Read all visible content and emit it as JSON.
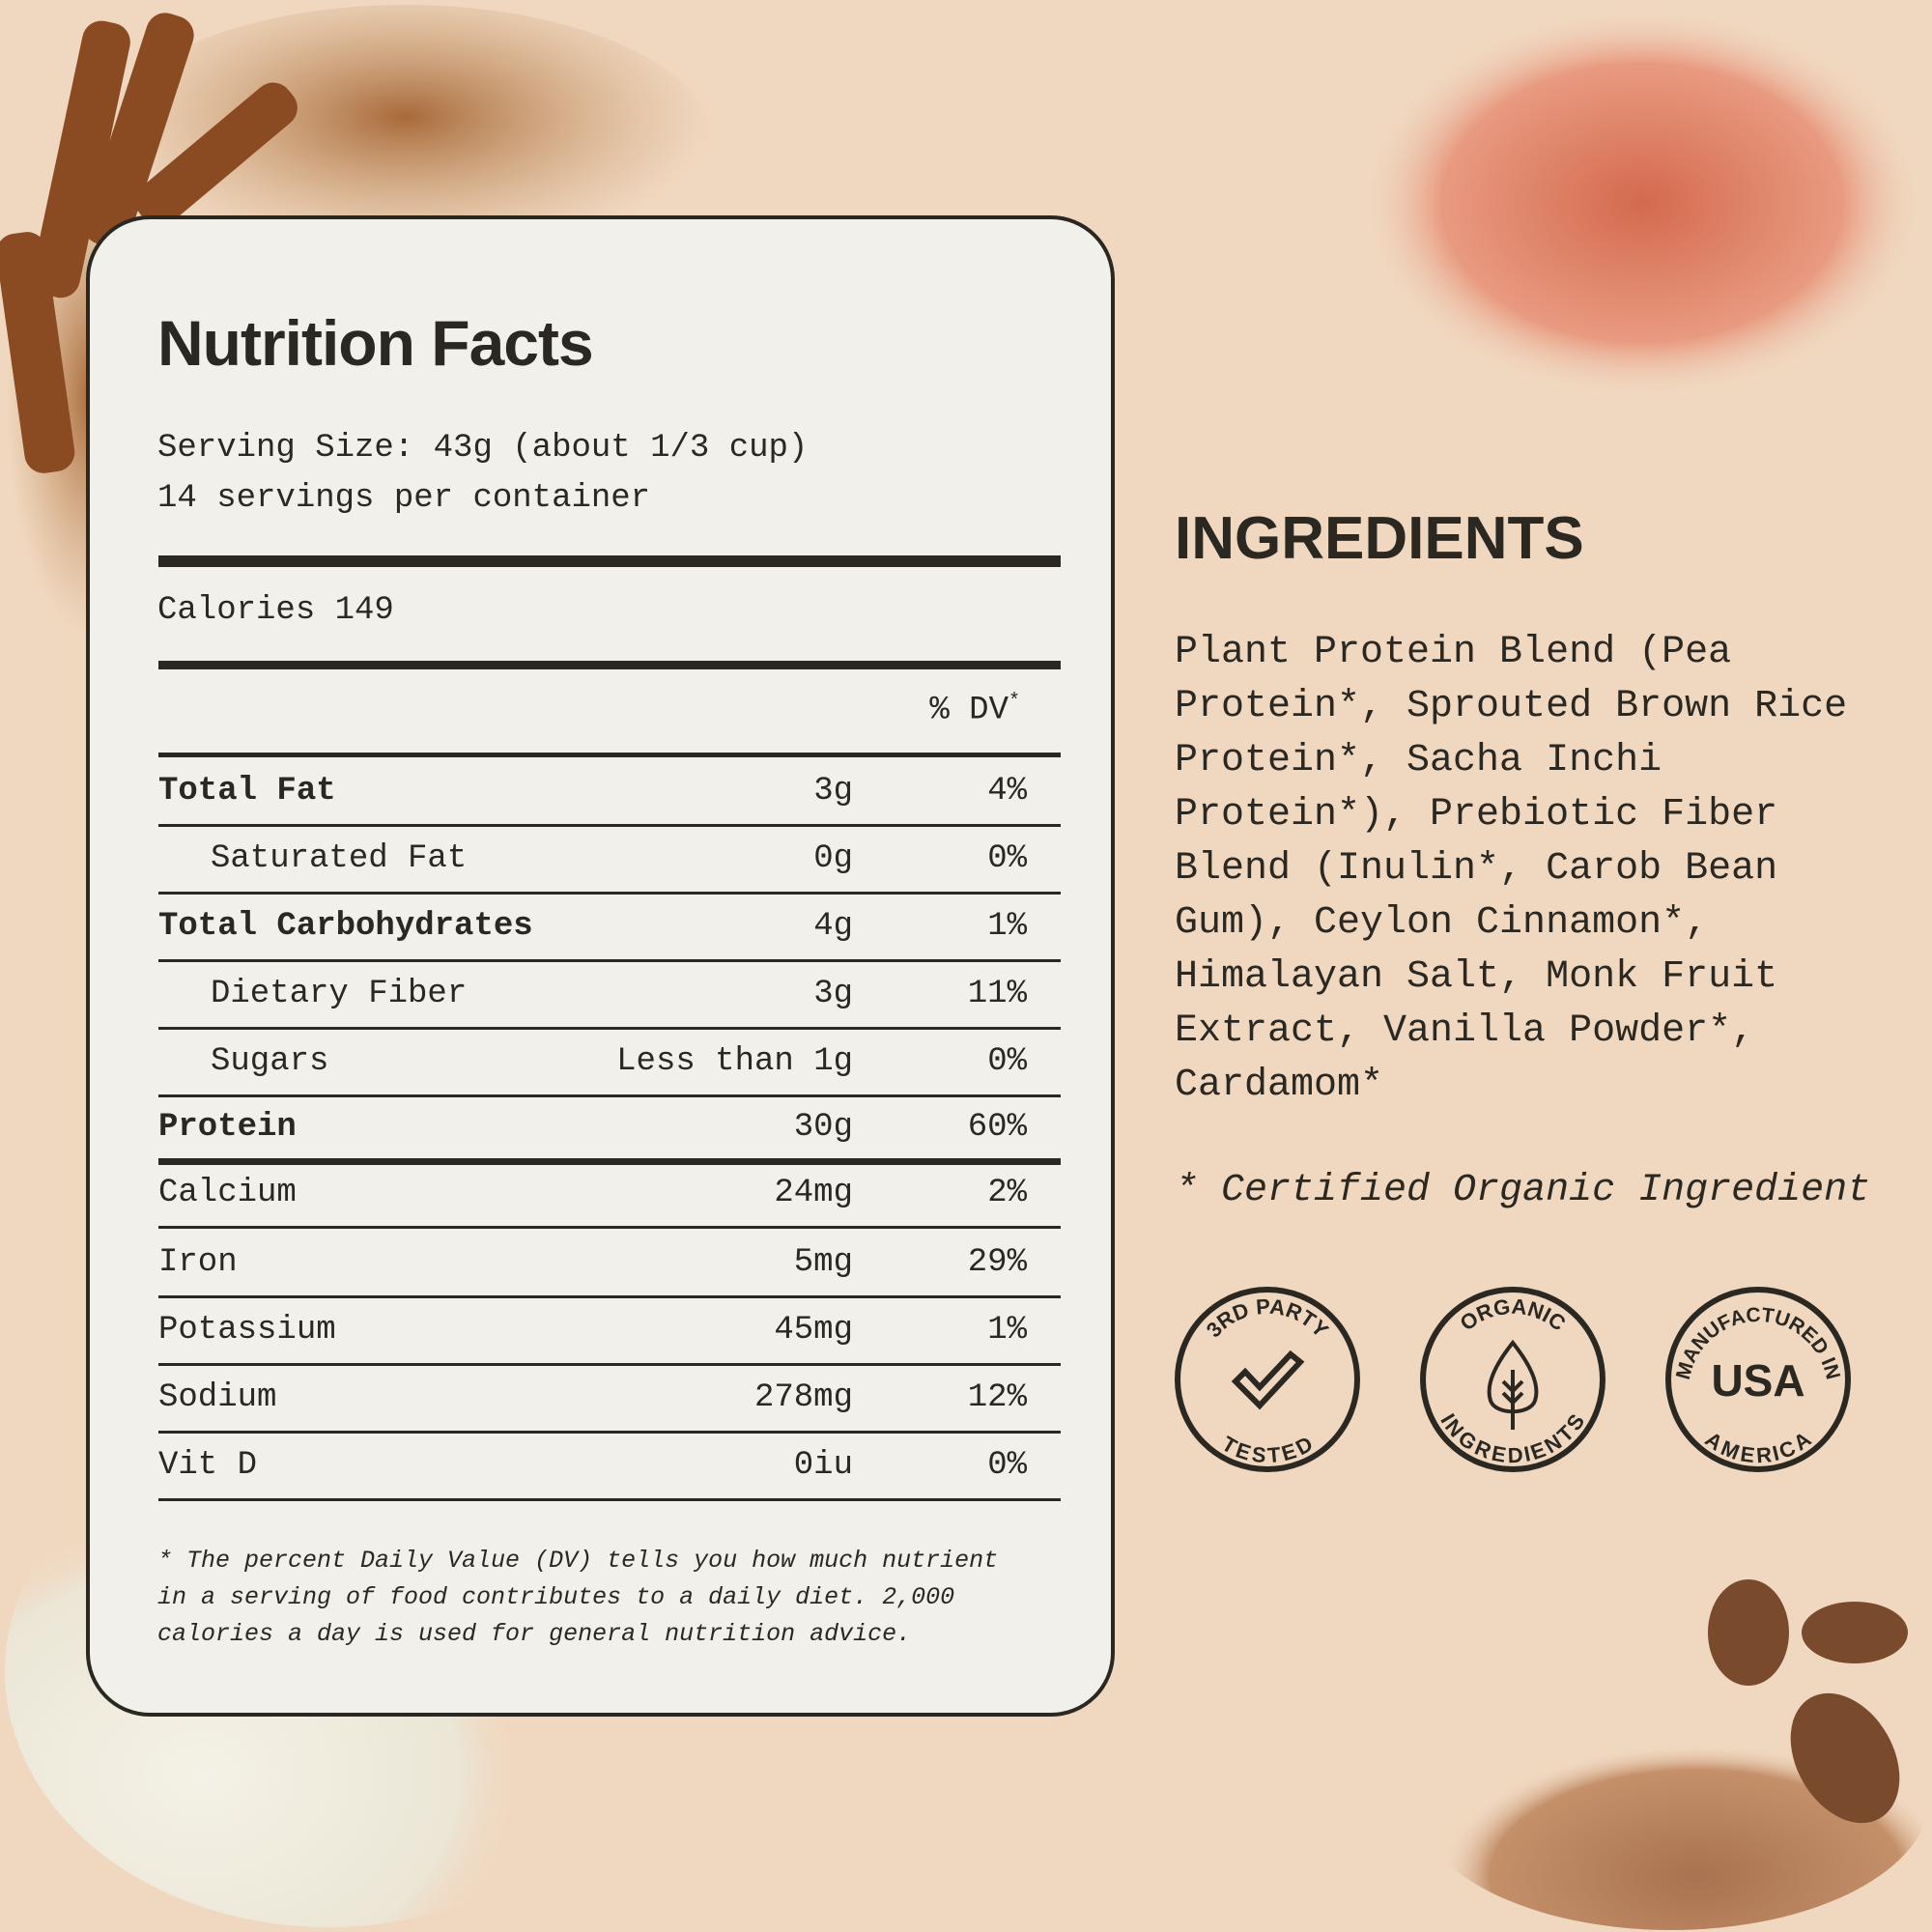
{
  "nutrition": {
    "title": "Nutrition Facts",
    "serving_size": "Serving Size: 43g (about 1/3 cup)",
    "servings": "14 servings per container",
    "calories": "Calories 149",
    "dv_header": "% DV",
    "dv_mark": "*",
    "rows": [
      {
        "name": "Total Fat",
        "amount": "3g",
        "dv": "4%"
      },
      {
        "name": "Saturated Fat",
        "amount": "0g",
        "dv": "0%"
      },
      {
        "name": "Total Carbohydrates",
        "amount": "4g",
        "dv": "1%"
      },
      {
        "name": "Dietary Fiber",
        "amount": "3g",
        "dv": "11%"
      },
      {
        "name": "Sugars",
        "amount": "Less than 1g",
        "dv": "0%"
      },
      {
        "name": "Protein",
        "amount": "30g",
        "dv": "60%"
      },
      {
        "name": "Calcium",
        "amount": "24mg",
        "dv": "2%"
      },
      {
        "name": "Iron",
        "amount": "5mg",
        "dv": "29%"
      },
      {
        "name": "Potassium",
        "amount": "45mg",
        "dv": "1%"
      },
      {
        "name": "Sodium",
        "amount": "278mg",
        "dv": "12%"
      },
      {
        "name": "Vit D",
        "amount": "0iu",
        "dv": "0%"
      }
    ],
    "footnote": "* The percent Daily Value (DV) tells you how much nutrient in a serving of food contributes to a daily diet. 2,000 calories a day is used for general nutrition advice."
  },
  "ingredients": {
    "heading": "INGREDIENTS",
    "text": "Plant Protein Blend (Pea\nProtein*, Sprouted Brown Rice\nProtein*, Sacha Inchi\nProtein*), Prebiotic Fiber\nBlend (Inulin*, Carob Bean\nGum), Ceylon Cinnamon*,\nHimalayan Salt, Monk Fruit\nExtract, Vanilla Powder*,\nCardamom*",
    "certified": "* Certified Organic Ingredient"
  },
  "badges": [
    {
      "top": "3RD PARTY",
      "bottom": "TESTED",
      "icon": "checkmark-icon"
    },
    {
      "top": "ORGANIC",
      "bottom": "INGREDIENTS",
      "icon": "leaf-icon"
    },
    {
      "top": "MANUFACTURED IN",
      "center": "USA",
      "bottom": "AMERICA"
    }
  ],
  "colors": {
    "background": "#f0d8c0",
    "card": "#f2f0eb",
    "ink": "#2b2822"
  }
}
